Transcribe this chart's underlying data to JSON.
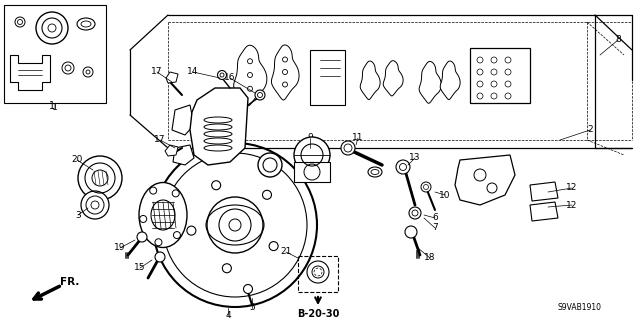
{
  "background_color": "#ffffff",
  "watermark": "S9VAB1910",
  "reference_code": "B-20-30",
  "fig_width": 6.4,
  "fig_height": 3.19,
  "dpi": 100
}
